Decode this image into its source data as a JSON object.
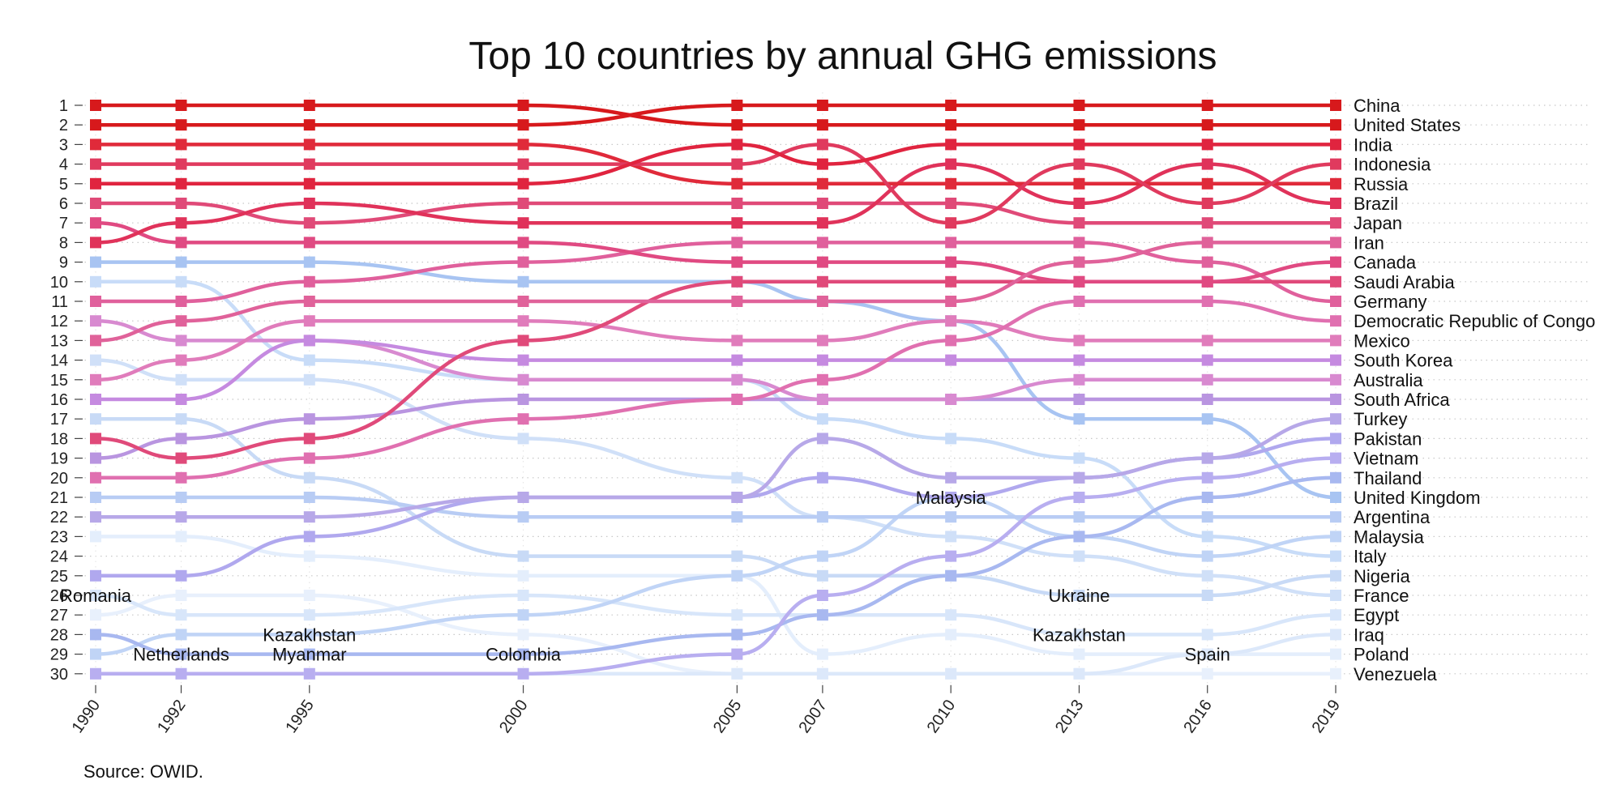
{
  "chart_data": {
    "type": "line",
    "title": "Top 10 countries by annual GHG emissions",
    "source": "Source: OWID.",
    "y_axis": {
      "reversed": true,
      "ylim": [
        1,
        30
      ],
      "ticks": [
        1,
        2,
        3,
        4,
        5,
        6,
        7,
        8,
        9,
        10,
        11,
        12,
        13,
        14,
        15,
        16,
        17,
        18,
        19,
        20,
        21,
        22,
        23,
        24,
        25,
        26,
        27,
        28,
        29,
        30
      ]
    },
    "years": [
      1990,
      1992,
      1995,
      2000,
      2005,
      2007,
      2010,
      2013,
      2016,
      2019
    ],
    "grid": "dotted horizontal",
    "final_order": [
      "China",
      "United States",
      "India",
      "Indonesia",
      "Russia",
      "Brazil",
      "Japan",
      "Iran",
      "Canada",
      "Saudi Arabia",
      "Germany",
      "Democratic Republic of Congo",
      "Mexico",
      "South Korea",
      "Australia",
      "South Africa",
      "Turkey",
      "Pakistan",
      "Vietnam",
      "Thailand",
      "United Kingdom",
      "Argentina",
      "Malaysia",
      "Italy",
      "Nigeria",
      "France",
      "Egypt",
      "Iraq",
      "Poland",
      "Venezuela"
    ],
    "series": [
      {
        "name": "China",
        "color": "#d7191c",
        "ranks": [
          2,
          2,
          2,
          2,
          1,
          1,
          1,
          1,
          1,
          1
        ]
      },
      {
        "name": "United States",
        "color": "#d7191c",
        "ranks": [
          1,
          1,
          1,
          1,
          2,
          2,
          2,
          2,
          2,
          2
        ]
      },
      {
        "name": "India",
        "color": "#e0243f",
        "ranks": [
          5,
          5,
          5,
          5,
          3,
          4,
          3,
          3,
          3,
          3
        ]
      },
      {
        "name": "Indonesia",
        "color": "#e03a5e",
        "ranks": [
          4,
          4,
          4,
          4,
          4,
          3,
          7,
          4,
          6,
          4
        ]
      },
      {
        "name": "Russia",
        "color": "#e02a3a",
        "ranks": [
          3,
          3,
          3,
          3,
          5,
          5,
          5,
          5,
          5,
          5
        ]
      },
      {
        "name": "Brazil",
        "color": "#e0325a",
        "ranks": [
          8,
          7,
          6,
          7,
          7,
          7,
          4,
          6,
          4,
          6
        ]
      },
      {
        "name": "Japan",
        "color": "#e04a78",
        "ranks": [
          6,
          6,
          7,
          6,
          6,
          6,
          6,
          7,
          7,
          7
        ]
      },
      {
        "name": "Iran",
        "color": "#e0629a",
        "ranks": [
          13,
          12,
          11,
          11,
          11,
          11,
          11,
          9,
          8,
          8
        ]
      },
      {
        "name": "Canada",
        "color": "#e04a82",
        "ranks": [
          7,
          8,
          8,
          8,
          9,
          9,
          9,
          10,
          10,
          9
        ]
      },
      {
        "name": "Saudi Arabia",
        "color": "#e04a7a",
        "ranks": [
          18,
          19,
          18,
          13,
          10,
          10,
          10,
          10,
          10,
          10
        ]
      },
      {
        "name": "Germany",
        "color": "#e0609c",
        "ranks": [
          11,
          11,
          10,
          9,
          8,
          8,
          8,
          8,
          9,
          11
        ]
      },
      {
        "name": "Democratic Republic of Congo",
        "color": "#e070b0",
        "ranks": [
          20,
          20,
          19,
          17,
          16,
          15,
          13,
          11,
          11,
          12
        ]
      },
      {
        "name": "Mexico",
        "color": "#e07cbb",
        "ranks": [
          15,
          14,
          12,
          12,
          13,
          13,
          12,
          13,
          13,
          13
        ]
      },
      {
        "name": "South Korea",
        "color": "#c58ae0",
        "ranks": [
          16,
          16,
          13,
          14,
          14,
          14,
          14,
          14,
          14,
          14
        ]
      },
      {
        "name": "Australia",
        "color": "#d88ad0",
        "ranks": [
          12,
          13,
          13,
          15,
          15,
          16,
          16,
          15,
          15,
          15
        ]
      },
      {
        "name": "South Africa",
        "color": "#b995e0",
        "ranks": [
          19,
          18,
          17,
          16,
          16,
          16,
          16,
          16,
          16,
          16
        ]
      },
      {
        "name": "Turkey",
        "color": "#b7a8e8",
        "ranks": [
          22,
          22,
          22,
          21,
          21,
          18,
          20,
          20,
          19,
          17
        ]
      },
      {
        "name": "Pakistan",
        "color": "#b0a8ee",
        "ranks": [
          25,
          25,
          23,
          21,
          21,
          20,
          21,
          20,
          19,
          18
        ]
      },
      {
        "name": "Vietnam",
        "color": "#b8aef0",
        "ranks": [
          30,
          30,
          30,
          30,
          29,
          26,
          24,
          21,
          20,
          19
        ]
      },
      {
        "name": "Thailand",
        "color": "#a8b8f0",
        "ranks": [
          28,
          29,
          29,
          29,
          28,
          27,
          25,
          23,
          21,
          20
        ]
      },
      {
        "name": "United Kingdom",
        "color": "#a8c4f2",
        "ranks": [
          9,
          9,
          9,
          10,
          10,
          11,
          12,
          17,
          17,
          21
        ]
      },
      {
        "name": "Argentina",
        "color": "#b8ccf4",
        "ranks": [
          21,
          21,
          21,
          22,
          22,
          22,
          22,
          22,
          22,
          22
        ]
      },
      {
        "name": "Malaysia",
        "color": "#c0d4f6",
        "ranks": [
          29,
          28,
          28,
          27,
          25,
          24,
          21,
          23,
          24,
          23
        ]
      },
      {
        "name": "Italy",
        "color": "#c8dcf8",
        "ranks": [
          10,
          10,
          14,
          15,
          15,
          17,
          18,
          19,
          23,
          24
        ]
      },
      {
        "name": "Nigeria",
        "color": "#c8daf6",
        "ranks": [
          17,
          17,
          20,
          24,
          24,
          25,
          25,
          26,
          26,
          25
        ]
      },
      {
        "name": "France",
        "color": "#d0e0f8",
        "ranks": [
          14,
          15,
          15,
          18,
          20,
          22,
          23,
          24,
          25,
          26
        ]
      },
      {
        "name": "Egypt",
        "color": "#d8e6fa",
        "ranks": [
          26,
          27,
          27,
          26,
          27,
          27,
          27,
          28,
          28,
          27
        ]
      },
      {
        "name": "Iraq",
        "color": "#dce8fa",
        "ranks": [
          30,
          30,
          30,
          30,
          30,
          30,
          30,
          30,
          29,
          28
        ]
      },
      {
        "name": "Poland",
        "color": "#e4eefc",
        "ranks": [
          23,
          23,
          24,
          25,
          25,
          29,
          28,
          29,
          29,
          29
        ]
      },
      {
        "name": "Venezuela",
        "color": "#e8f0fc",
        "ranks": [
          27,
          26,
          26,
          28,
          30,
          30,
          30,
          30,
          30,
          30
        ]
      }
    ],
    "annotations": [
      {
        "text": "Romania",
        "year": 1990,
        "rank": 26
      },
      {
        "text": "Netherlands",
        "year": 1992,
        "rank": 29
      },
      {
        "text": "Kazakhstan",
        "year": 1995,
        "rank": 28
      },
      {
        "text": "Myanmar",
        "year": 1995,
        "rank": 29
      },
      {
        "text": "Colombia",
        "year": 2000,
        "rank": 29
      },
      {
        "text": "Malaysia",
        "year": 2010,
        "rank": 21
      },
      {
        "text": "Ukraine",
        "year": 2013,
        "rank": 26
      },
      {
        "text": "Kazakhstan",
        "year": 2013,
        "rank": 28
      },
      {
        "text": "Spain",
        "year": 2016,
        "rank": 29
      }
    ]
  }
}
